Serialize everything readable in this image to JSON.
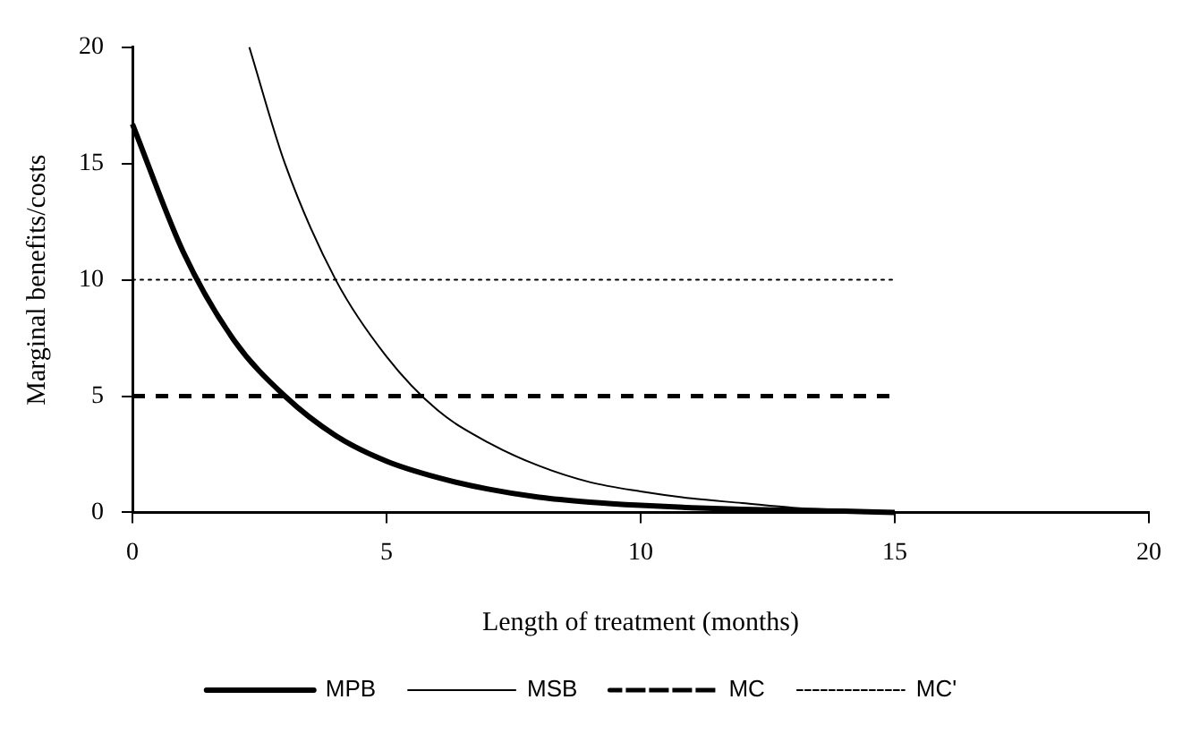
{
  "chart_data": {
    "type": "line",
    "xlabel": "Length of treatment (months)",
    "ylabel": "Marginal benefits/costs",
    "xlim": [
      0,
      20
    ],
    "ylim": [
      0,
      20
    ],
    "xticks": [
      0,
      5,
      10,
      15,
      20
    ],
    "yticks": [
      0,
      5,
      10,
      15,
      20
    ],
    "grid": false,
    "legend": "bottom",
    "marker": "none",
    "series": [
      {
        "name": "MPB",
        "color": "#000000",
        "line_style": "solid",
        "x": [
          0,
          1,
          2,
          3,
          4,
          5,
          6,
          7,
          8,
          9,
          10,
          11,
          12,
          13,
          14,
          15
        ],
        "values": [
          16.7,
          11.2,
          7.4,
          5,
          3.3,
          2.2,
          1.5,
          1,
          0.65,
          0.44,
          0.3,
          0.2,
          0.13,
          0.08,
          0.05,
          0
        ]
      },
      {
        "name": "MSB",
        "color": "#000000",
        "line_style": "solid",
        "x": [
          2.3,
          3,
          4,
          5,
          6,
          7,
          8,
          9,
          10,
          11,
          12,
          13,
          14,
          15
        ],
        "values": [
          20,
          15,
          10,
          6.7,
          4.4,
          3,
          2,
          1.3,
          0.9,
          0.6,
          0.4,
          0.2,
          0.1,
          0
        ]
      },
      {
        "name": "MC",
        "color": "#000000",
        "line_style": "dashed",
        "x": [
          0,
          15
        ],
        "values": [
          5,
          5
        ]
      },
      {
        "name": "MC'",
        "color": "#000000",
        "line_style": "dotted",
        "x": [
          0,
          15
        ],
        "values": [
          10,
          10
        ]
      }
    ]
  }
}
